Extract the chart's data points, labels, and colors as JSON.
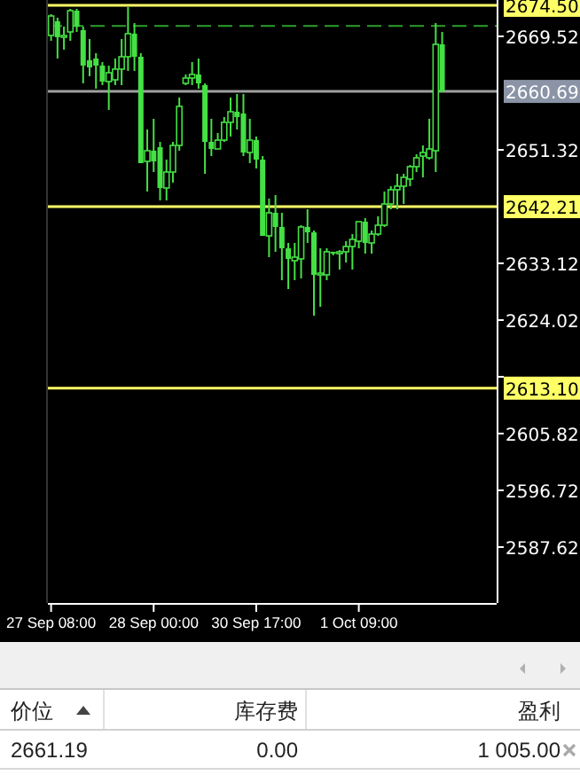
{
  "chart_data": {
    "type": "candlestick",
    "categories": [
      "27 Sep 08:00",
      null,
      null,
      null,
      null,
      null,
      null,
      null,
      null,
      null,
      null,
      null,
      null,
      null,
      null,
      null,
      "28 Sep 00:00",
      null,
      null,
      null,
      null,
      null,
      null,
      null,
      null,
      null,
      null,
      null,
      null,
      null,
      null,
      null,
      "30 Sep 17:00",
      null,
      null,
      null,
      null,
      null,
      null,
      null,
      null,
      null,
      null,
      null,
      null,
      null,
      null,
      null,
      "1 Oct 09:00",
      null,
      null,
      null,
      null,
      null,
      null,
      null,
      null,
      null,
      null,
      null,
      null,
      null,
      null,
      null,
      null,
      null,
      null,
      null,
      null,
      null
    ],
    "ohlc": [
      [
        2669.66,
        2673.07,
        2668.81,
        2672.79
      ],
      [
        2671.94,
        2672.51,
        2665.96,
        2669.38
      ],
      [
        2669.38,
        2671.08,
        2667.39,
        2669.66
      ],
      [
        2670.23,
        2673.93,
        2668.81,
        2673.64
      ],
      [
        2673.64,
        2673.93,
        2670.23,
        2671.08
      ],
      [
        2670.52,
        2671.08,
        2661.98,
        2664.83
      ],
      [
        2665.68,
        2669.09,
        2663.12,
        2664.54
      ],
      [
        2665.96,
        2666.82,
        2661.13,
        2664.83
      ],
      [
        2664.83,
        2665.4,
        2661.7,
        2662.27
      ],
      [
        2662.27,
        2664.83,
        2657.72,
        2663.69
      ],
      [
        2662.55,
        2665.96,
        2661.7,
        2664.26
      ],
      [
        2664.26,
        2669.09,
        2661.7,
        2666.25
      ],
      [
        2666.25,
        2674.21,
        2663.97,
        2669.95
      ],
      [
        2669.95,
        2671.65,
        2663.97,
        2666.25
      ],
      [
        2666.25,
        2666.82,
        2649.19,
        2649.19
      ],
      [
        2649.47,
        2654.59,
        2644.63,
        2651.18
      ],
      [
        2651.18,
        2656.3,
        2647.76,
        2649.47
      ],
      [
        2651.74,
        2652.6,
        2643.21,
        2645.2
      ],
      [
        2645.2,
        2649.75,
        2643.21,
        2647.76
      ],
      [
        2647.76,
        2652.6,
        2646.06,
        2652.03
      ],
      [
        2652.03,
        2659.71,
        2651.18,
        2658.29
      ],
      [
        2661.98,
        2663.41,
        2661.7,
        2662.84
      ],
      [
        2662.84,
        2665.4,
        2661.7,
        2663.41
      ],
      [
        2663.41,
        2665.96,
        2661.13,
        2661.98
      ],
      [
        2661.7,
        2661.98,
        2647.48,
        2652.6
      ],
      [
        2652.6,
        2656.3,
        2650.32,
        2651.46
      ],
      [
        2651.46,
        2654.02,
        2651.46,
        2652.88
      ],
      [
        2652.88,
        2656.58,
        2652.6,
        2655.73
      ],
      [
        2655.73,
        2659.71,
        2653.45,
        2657.43
      ],
      [
        2657.43,
        2660.28,
        2654.59,
        2656.58
      ],
      [
        2657.15,
        2660.28,
        2650.32,
        2650.89
      ],
      [
        2650.89,
        2656.3,
        2649.19,
        2652.88
      ],
      [
        2652.88,
        2653.45,
        2648.33,
        2649.75
      ],
      [
        2649.75,
        2650.32,
        2637.52,
        2637.52
      ],
      [
        2637.52,
        2643.5,
        2634.11,
        2641.22
      ],
      [
        2641.22,
        2644.07,
        2634.97,
        2638.95
      ],
      [
        2638.95,
        2641.22,
        2630.41,
        2635.53
      ],
      [
        2635.53,
        2636.39,
        2628.99,
        2633.83
      ],
      [
        2633.54,
        2636.39,
        2630.41,
        2634.11
      ],
      [
        2633.83,
        2639.23,
        2630.7,
        2638.95
      ],
      [
        2638.95,
        2641.79,
        2636.39,
        2638.09
      ],
      [
        2638.09,
        2638.38,
        2624.73,
        2631.27
      ],
      [
        2631.27,
        2635.53,
        2626.15,
        2631.55
      ],
      [
        2631.27,
        2635.53,
        2630.41,
        2634.97
      ],
      [
        2634.97,
        2634.97,
        2634.4,
        2634.68
      ],
      [
        2634.68,
        2635.25,
        2632.12,
        2634.97
      ],
      [
        2634.97,
        2636.67,
        2633.26,
        2635.82
      ],
      [
        2635.82,
        2637.81,
        2632.12,
        2636.96
      ],
      [
        2636.67,
        2639.8,
        2635.53,
        2639.8
      ],
      [
        2639.8,
        2640.37,
        2634.68,
        2636.39
      ],
      [
        2636.39,
        2638.38,
        2634.68,
        2637.81
      ],
      [
        2637.81,
        2640.65,
        2637.52,
        2639.23
      ],
      [
        2639.23,
        2644.63,
        2638.95,
        2642.64
      ],
      [
        2642.64,
        2645.49,
        2641.79,
        2644.92
      ],
      [
        2644.92,
        2647.48,
        2641.79,
        2645.49
      ],
      [
        2645.49,
        2647.48,
        2642.64,
        2646.91
      ],
      [
        2646.63,
        2648.9,
        2645.49,
        2648.62
      ],
      [
        2648.62,
        2650.61,
        2647.76,
        2650.04
      ],
      [
        2650.32,
        2652.03,
        2646.91,
        2650.89
      ],
      [
        2650.04,
        2656.3,
        2649.75,
        2651.46
      ],
      [
        2651.18,
        2671.65,
        2647.76,
        2668.24
      ],
      [
        2668.24,
        2670.23,
        2660.56,
        2660.69
      ],
      null,
      null,
      null,
      null,
      null,
      null,
      null,
      null
    ],
    "color": "#44e044",
    "ylim": [
      2578.65,
      2675.35
    ],
    "yticks": [
      2669.52,
      2651.32,
      2633.12,
      2624.02,
      {
        "value": 2614.92,
        "label": null
      },
      2605.82,
      2596.72,
      2587.62
    ],
    "ref_lines": [
      {
        "axis": "y",
        "value": 2671.2,
        "label": null,
        "color": "#2e9e2e",
        "line_style": "dashed"
      },
      {
        "axis": "y",
        "value": 2660.69,
        "label": "2660.69",
        "color": "#a0a0a0"
      },
      {
        "axis": "y",
        "value": 2674.5,
        "label": "2674.50",
        "color": "#ffff66"
      },
      {
        "axis": "y",
        "value": 2642.21,
        "label": "2642.21",
        "color": "#ffff66"
      },
      {
        "axis": "y",
        "value": 2613.1,
        "label": "2613.10",
        "color": "#ffff66"
      }
    ],
    "annotations": [
      "价位",
      "库存费",
      "盈利",
      "2661.19",
      "0.00",
      "1 005.00"
    ],
    "grid": false
  }
}
